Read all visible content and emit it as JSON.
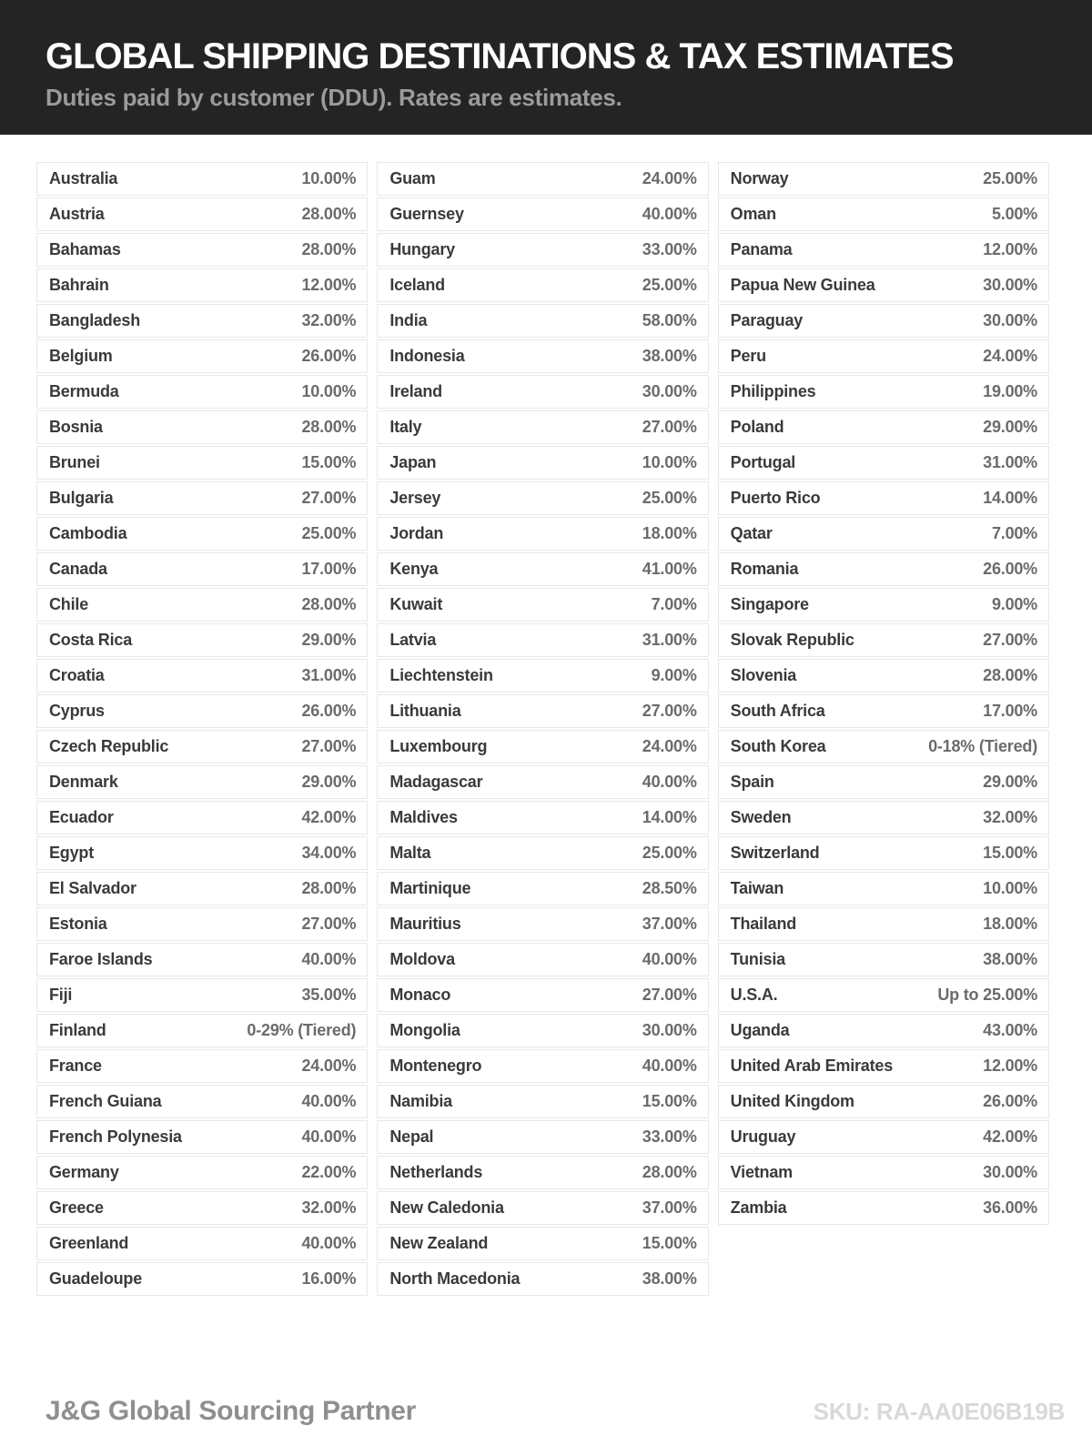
{
  "header": {
    "title": "GLOBAL SHIPPING DESTINATIONS & TAX ESTIMATES",
    "subtitle": "Duties paid by customer (DDU). Rates are estimates."
  },
  "table": {
    "columns": [
      [
        {
          "country": "Australia",
          "rate": "10.00%"
        },
        {
          "country": "Austria",
          "rate": "28.00%"
        },
        {
          "country": "Bahamas",
          "rate": "28.00%"
        },
        {
          "country": "Bahrain",
          "rate": "12.00%"
        },
        {
          "country": "Bangladesh",
          "rate": "32.00%"
        },
        {
          "country": "Belgium",
          "rate": "26.00%"
        },
        {
          "country": "Bermuda",
          "rate": "10.00%"
        },
        {
          "country": "Bosnia",
          "rate": "28.00%"
        },
        {
          "country": "Brunei",
          "rate": "15.00%"
        },
        {
          "country": "Bulgaria",
          "rate": "27.00%"
        },
        {
          "country": "Cambodia",
          "rate": "25.00%"
        },
        {
          "country": "Canada",
          "rate": "17.00%"
        },
        {
          "country": "Chile",
          "rate": "28.00%"
        },
        {
          "country": "Costa Rica",
          "rate": "29.00%"
        },
        {
          "country": "Croatia",
          "rate": "31.00%"
        },
        {
          "country": "Cyprus",
          "rate": "26.00%"
        },
        {
          "country": "Czech Republic",
          "rate": "27.00%"
        },
        {
          "country": "Denmark",
          "rate": "29.00%"
        },
        {
          "country": "Ecuador",
          "rate": "42.00%"
        },
        {
          "country": "Egypt",
          "rate": "34.00%"
        },
        {
          "country": "El Salvador",
          "rate": "28.00%"
        },
        {
          "country": "Estonia",
          "rate": "27.00%"
        },
        {
          "country": "Faroe Islands",
          "rate": "40.00%"
        },
        {
          "country": "Fiji",
          "rate": "35.00%"
        },
        {
          "country": "Finland",
          "rate": "0-29% (Tiered)"
        },
        {
          "country": "France",
          "rate": "24.00%"
        },
        {
          "country": "French Guiana",
          "rate": "40.00%"
        },
        {
          "country": "French Polynesia",
          "rate": "40.00%"
        },
        {
          "country": "Germany",
          "rate": "22.00%"
        },
        {
          "country": "Greece",
          "rate": "32.00%"
        },
        {
          "country": "Greenland",
          "rate": "40.00%"
        },
        {
          "country": "Guadeloupe",
          "rate": "16.00%"
        }
      ],
      [
        {
          "country": "Guam",
          "rate": "24.00%"
        },
        {
          "country": "Guernsey",
          "rate": "40.00%"
        },
        {
          "country": "Hungary",
          "rate": "33.00%"
        },
        {
          "country": "Iceland",
          "rate": "25.00%"
        },
        {
          "country": "India",
          "rate": "58.00%"
        },
        {
          "country": "Indonesia",
          "rate": "38.00%"
        },
        {
          "country": "Ireland",
          "rate": "30.00%"
        },
        {
          "country": "Italy",
          "rate": "27.00%"
        },
        {
          "country": "Japan",
          "rate": "10.00%"
        },
        {
          "country": "Jersey",
          "rate": "25.00%"
        },
        {
          "country": "Jordan",
          "rate": "18.00%"
        },
        {
          "country": "Kenya",
          "rate": "41.00%"
        },
        {
          "country": "Kuwait",
          "rate": "7.00%"
        },
        {
          "country": "Latvia",
          "rate": "31.00%"
        },
        {
          "country": "Liechtenstein",
          "rate": "9.00%"
        },
        {
          "country": "Lithuania",
          "rate": "27.00%"
        },
        {
          "country": "Luxembourg",
          "rate": "24.00%"
        },
        {
          "country": "Madagascar",
          "rate": "40.00%"
        },
        {
          "country": "Maldives",
          "rate": "14.00%"
        },
        {
          "country": "Malta",
          "rate": "25.00%"
        },
        {
          "country": "Martinique",
          "rate": "28.50%"
        },
        {
          "country": "Mauritius",
          "rate": "37.00%"
        },
        {
          "country": "Moldova",
          "rate": "40.00%"
        },
        {
          "country": "Monaco",
          "rate": "27.00%"
        },
        {
          "country": "Mongolia",
          "rate": "30.00%"
        },
        {
          "country": "Montenegro",
          "rate": "40.00%"
        },
        {
          "country": "Namibia",
          "rate": "15.00%"
        },
        {
          "country": "Nepal",
          "rate": "33.00%"
        },
        {
          "country": "Netherlands",
          "rate": "28.00%"
        },
        {
          "country": "New Caledonia",
          "rate": "37.00%"
        },
        {
          "country": "New Zealand",
          "rate": "15.00%"
        },
        {
          "country": "North Macedonia",
          "rate": "38.00%"
        }
      ],
      [
        {
          "country": "Norway",
          "rate": "25.00%"
        },
        {
          "country": "Oman",
          "rate": "5.00%"
        },
        {
          "country": "Panama",
          "rate": "12.00%"
        },
        {
          "country": "Papua New Guinea",
          "rate": "30.00%"
        },
        {
          "country": "Paraguay",
          "rate": "30.00%"
        },
        {
          "country": "Peru",
          "rate": "24.00%"
        },
        {
          "country": "Philippines",
          "rate": "19.00%"
        },
        {
          "country": "Poland",
          "rate": "29.00%"
        },
        {
          "country": "Portugal",
          "rate": "31.00%"
        },
        {
          "country": "Puerto Rico",
          "rate": "14.00%"
        },
        {
          "country": "Qatar",
          "rate": "7.00%"
        },
        {
          "country": "Romania",
          "rate": "26.00%"
        },
        {
          "country": "Singapore",
          "rate": "9.00%"
        },
        {
          "country": "Slovak Republic",
          "rate": "27.00%"
        },
        {
          "country": "Slovenia",
          "rate": "28.00%"
        },
        {
          "country": "South Africa",
          "rate": "17.00%"
        },
        {
          "country": "South Korea",
          "rate": "0-18% (Tiered)"
        },
        {
          "country": "Spain",
          "rate": "29.00%"
        },
        {
          "country": "Sweden",
          "rate": "32.00%"
        },
        {
          "country": "Switzerland",
          "rate": "15.00%"
        },
        {
          "country": "Taiwan",
          "rate": "10.00%"
        },
        {
          "country": "Thailand",
          "rate": "18.00%"
        },
        {
          "country": "Tunisia",
          "rate": "38.00%"
        },
        {
          "country": "U.S.A.",
          "rate": "Up to 25.00%"
        },
        {
          "country": "Uganda",
          "rate": "43.00%"
        },
        {
          "country": "United Arab Emirates",
          "rate": "12.00%"
        },
        {
          "country": "United Kingdom",
          "rate": "26.00%"
        },
        {
          "country": "Uruguay",
          "rate": "42.00%"
        },
        {
          "country": "Vietnam",
          "rate": "30.00%"
        },
        {
          "country": "Zambia",
          "rate": "36.00%"
        }
      ]
    ]
  },
  "footer": {
    "brand": "J&G Global Sourcing Partner",
    "sku": "SKU: RA-AA0E06B19B"
  },
  "colors": {
    "header_bg": "#242424",
    "title_text": "#ffffff",
    "subtitle_text": "#9b9b9b",
    "country_text": "#3a3a3a",
    "rate_text": "#6b6b6b",
    "row_border": "#e8e8e8",
    "brand_text": "#8f8f8f",
    "sku_text": "#d9d9d9"
  }
}
